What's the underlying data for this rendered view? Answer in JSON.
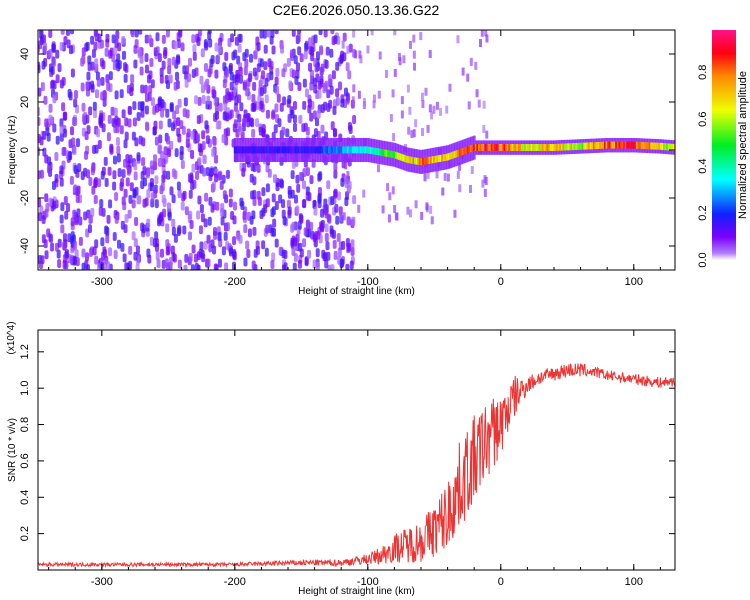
{
  "title": "C2E6.2026.050.13.36.G22",
  "chart_data": [
    {
      "type": "heatmap",
      "title": "C2E6.2026.050.13.36.G22",
      "xlabel": "Height of straight line (km)",
      "ylabel": "Frequency (Hz)",
      "xlim": [
        -348,
        131
      ],
      "ylim": [
        -50,
        50
      ],
      "xticks": [
        -300,
        -200,
        -100,
        0,
        100
      ],
      "xtick_labels": [
        "-300",
        "-200",
        "-100",
        "0",
        "100"
      ],
      "yticks": [
        -40,
        -20,
        0,
        20,
        40
      ],
      "ytick_labels": [
        "-40",
        "-20",
        "0",
        "20",
        "40"
      ],
      "colorbar": {
        "label": "Normalized spectral amplitude",
        "range": [
          0,
          1
        ],
        "ticks": [
          "0.0",
          "0.2",
          "0.4",
          "0.6",
          "0.8"
        ]
      },
      "ridge": {
        "height_km": [
          -140,
          -120,
          -100,
          -90,
          -80,
          -70,
          -60,
          -50,
          -40,
          -30,
          -20,
          -10,
          0,
          20,
          40,
          60,
          80,
          100,
          120,
          131
        ],
        "frequency_hz": [
          0,
          0,
          0,
          -1,
          -2,
          -4,
          -5,
          -4,
          -3,
          -1,
          1,
          1,
          1,
          1,
          1,
          1.5,
          2,
          2,
          1.5,
          1
        ],
        "amplitude": [
          0.2,
          0.3,
          0.4,
          0.5,
          0.6,
          0.7,
          0.8,
          0.8,
          0.7,
          0.8,
          0.9,
          0.9,
          0.9,
          0.7,
          0.8,
          0.6,
          0.9,
          0.95,
          0.7,
          0.6
        ]
      },
      "noise_region_km": [
        -348,
        -120
      ]
    },
    {
      "type": "line",
      "xlabel": "Height of straight line (km)",
      "ylabel": "SNR (10 * v/v)",
      "y_multiplier": "(x10^4)",
      "xlim": [
        -348,
        131
      ],
      "ylim": [
        0,
        1.32
      ],
      "xticks": [
        -300,
        -200,
        -100,
        0,
        100
      ],
      "xtick_labels": [
        "-300",
        "-200",
        "-100",
        "0",
        "100"
      ],
      "yticks": [
        0.2,
        0.4,
        0.6,
        0.8,
        1.0,
        1.2
      ],
      "ytick_labels": [
        "0.2",
        "0.4",
        "0.6",
        "0.8",
        "1.0",
        "1.2"
      ],
      "color": "#ee3333",
      "series": [
        {
          "name": "SNR",
          "x": [
            -348,
            -300,
            -250,
            -200,
            -150,
            -120,
            -100,
            -90,
            -80,
            -70,
            -60,
            -50,
            -40,
            -30,
            -20,
            -10,
            0,
            10,
            20,
            30,
            40,
            50,
            60,
            70,
            80,
            90,
            100,
            110,
            120,
            131
          ],
          "y": [
            0.03,
            0.03,
            0.03,
            0.03,
            0.04,
            0.04,
            0.06,
            0.08,
            0.12,
            0.14,
            0.16,
            0.22,
            0.3,
            0.48,
            0.6,
            0.72,
            0.8,
            0.95,
            1.02,
            1.06,
            1.08,
            1.1,
            1.1,
            1.09,
            1.07,
            1.06,
            1.05,
            1.04,
            1.03,
            1.04
          ],
          "noise": [
            0.01,
            0.01,
            0.01,
            0.01,
            0.015,
            0.02,
            0.03,
            0.05,
            0.08,
            0.1,
            0.12,
            0.15,
            0.2,
            0.25,
            0.25,
            0.22,
            0.18,
            0.12,
            0.05,
            0.04,
            0.04,
            0.04,
            0.04,
            0.03,
            0.03,
            0.03,
            0.03,
            0.03,
            0.03,
            0.03
          ]
        }
      ]
    }
  ]
}
